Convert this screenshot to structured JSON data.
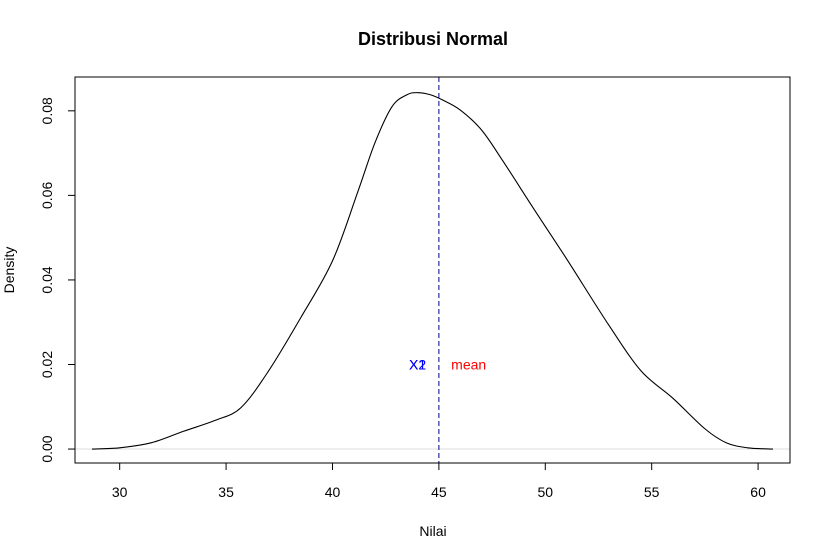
{
  "chart_data": {
    "type": "line",
    "title": "Distribusi Normal",
    "xlabel": "Nilai",
    "ylabel": "Density",
    "xlim": [
      27.9,
      61.5
    ],
    "ylim": [
      -0.0033,
      0.088
    ],
    "x_ticks": [
      30,
      35,
      40,
      45,
      50,
      55,
      60
    ],
    "x_tick_labels": [
      "30",
      "35",
      "40",
      "45",
      "50",
      "55",
      "60"
    ],
    "y_ticks": [
      0.0,
      0.02,
      0.04,
      0.06,
      0.08
    ],
    "y_tick_labels": [
      "0.00",
      "0.02",
      "0.04",
      "0.06",
      "0.08"
    ],
    "grid": false,
    "baseline": {
      "y": 0,
      "color": "#dddddd"
    },
    "series": [
      {
        "color": "#000000",
        "x": [
          28.7,
          30.0,
          31.5,
          33.0,
          34.5,
          35.7,
          37.0,
          38.5,
          40.0,
          41.2,
          42.0,
          42.8,
          43.5,
          44.0,
          44.6,
          45.2,
          46.0,
          47.0,
          48.0,
          49.5,
          51.0,
          53.0,
          54.5,
          56.0,
          57.5,
          58.5,
          59.5,
          60.7
        ],
        "y": [
          0.0,
          0.0003,
          0.0015,
          0.0042,
          0.0068,
          0.0098,
          0.0185,
          0.031,
          0.0445,
          0.061,
          0.0725,
          0.081,
          0.0838,
          0.0843,
          0.0838,
          0.0825,
          0.0802,
          0.0755,
          0.0682,
          0.0565,
          0.045,
          0.0292,
          0.0185,
          0.012,
          0.0048,
          0.0015,
          0.0003,
          0.0
        ]
      }
    ],
    "vlines": [
      {
        "x": 45.0,
        "color": "#00008b",
        "style": "dashed"
      }
    ],
    "annotations": [
      {
        "text": "X1",
        "x": 44.0,
        "y": 0.02,
        "color": "#0000ff"
      },
      {
        "text": "X2",
        "x": 44.0,
        "y": 0.02,
        "color": "#0000ff"
      },
      {
        "text": "mean",
        "x": 46.4,
        "y": 0.02,
        "color": "#ff0000"
      }
    ]
  }
}
